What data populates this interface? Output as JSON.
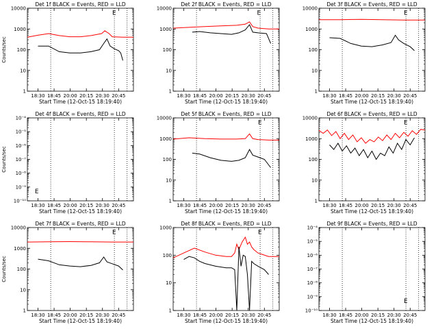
{
  "chart_data": [
    {
      "type": "line",
      "title": "Det 1f BLACK = Events, RED = LLD",
      "xlabel": "Start Time (12-Oct-15 18:19:40)",
      "ylabel": "Counts/sec",
      "yscale": "log",
      "ylim": [
        1,
        10000
      ],
      "yticks": [
        "1",
        "10",
        "100",
        "1000",
        "10000"
      ],
      "xticks": [
        "18:30",
        "18:45",
        "20:00",
        "20:15",
        "20:30",
        "20:45"
      ],
      "marker": "E",
      "empty": false,
      "series": [
        {
          "name": "LLD",
          "color": "#ff0000",
          "x": [
            0.0,
            0.1,
            0.2,
            0.3,
            0.4,
            0.5,
            0.6,
            0.7,
            0.73,
            0.77,
            0.8,
            0.9,
            1.0
          ],
          "y": [
            400,
            500,
            600,
            480,
            420,
            420,
            480,
            600,
            820,
            600,
            420,
            400,
            400
          ]
        },
        {
          "name": "Events",
          "color": "#000000",
          "x": [
            0.1,
            0.2,
            0.3,
            0.4,
            0.5,
            0.6,
            0.68,
            0.72,
            0.75,
            0.78,
            0.82,
            0.86,
            0.88,
            0.9
          ],
          "y": [
            150,
            150,
            80,
            70,
            70,
            80,
            100,
            200,
            330,
            150,
            110,
            90,
            70,
            30
          ]
        }
      ]
    },
    {
      "type": "line",
      "title": "Det 2f BLACK = Events, RED = LLD",
      "xlabel": "Start Time (12-Oct-15 18:19:40)",
      "ylabel": "",
      "yscale": "log",
      "ylim": [
        1,
        10000
      ],
      "yticks": [
        "1",
        "10",
        "100",
        "1000",
        "10000"
      ],
      "xticks": [
        "18:30",
        "18:45",
        "20:00",
        "20:15",
        "20:30",
        "20:45"
      ],
      "marker": "E",
      "empty": false,
      "series": [
        {
          "name": "LLD",
          "color": "#ff0000",
          "x": [
            0.0,
            0.15,
            0.3,
            0.45,
            0.6,
            0.68,
            0.72,
            0.75,
            0.8,
            0.9,
            1.0
          ],
          "y": [
            1100,
            1200,
            1300,
            1400,
            1500,
            1700,
            2200,
            1300,
            1100,
            1000,
            1000
          ]
        },
        {
          "name": "Events",
          "color": "#000000",
          "x": [
            0.18,
            0.25,
            0.35,
            0.45,
            0.55,
            0.62,
            0.68,
            0.72,
            0.75,
            0.8,
            0.88,
            0.92
          ],
          "y": [
            700,
            750,
            650,
            600,
            550,
            650,
            900,
            1600,
            700,
            650,
            600,
            200
          ]
        }
      ]
    },
    {
      "type": "line",
      "title": "Det 3f BLACK = Events, RED = LLD",
      "xlabel": "Start Time (12-Oct-15 18:19:40)",
      "ylabel": "",
      "yscale": "log",
      "ylim": [
        1,
        10000
      ],
      "yticks": [
        "1",
        "10",
        "100",
        "1000",
        "10000"
      ],
      "xticks": [
        "18:30",
        "18:45",
        "20:00",
        "20:15",
        "20:30",
        "20:45"
      ],
      "marker": "E",
      "empty": false,
      "series": [
        {
          "name": "LLD",
          "color": "#ff0000",
          "x": [
            0.0,
            0.2,
            0.4,
            0.6,
            0.8,
            1.0
          ],
          "y": [
            2800,
            2800,
            2900,
            2800,
            2700,
            2700
          ]
        },
        {
          "name": "Events",
          "color": "#000000",
          "x": [
            0.1,
            0.2,
            0.3,
            0.4,
            0.5,
            0.6,
            0.68,
            0.72,
            0.75,
            0.8,
            0.86,
            0.9
          ],
          "y": [
            380,
            350,
            200,
            150,
            140,
            170,
            220,
            500,
            300,
            200,
            140,
            90
          ]
        }
      ]
    },
    {
      "type": "line",
      "title": "Det 4f BLACK = Events, RED = LLD",
      "xlabel": "Start Time (12-Oct-15 18:19:40)",
      "ylabel": "Counts/sec",
      "yscale": "log",
      "ylim": [
        1e-10,
        0.0001
      ],
      "yticks": [
        "10⁻¹⁰",
        "10⁻⁹",
        "10⁻⁸",
        "10⁻⁷",
        "10⁻⁶",
        "10⁻⁵",
        "10⁻⁴"
      ],
      "xticks": [
        "18:30",
        "18:45",
        "20:00",
        "20:15",
        "20:30",
        "20:45"
      ],
      "marker": "E",
      "empty": true,
      "series": []
    },
    {
      "type": "line",
      "title": "Det 5f BLACK = Events, RED = LLD",
      "xlabel": "Start Time (12-Oct-15 18:19:40)",
      "ylabel": "",
      "yscale": "log",
      "ylim": [
        1,
        10000
      ],
      "yticks": [
        "1",
        "10",
        "100",
        "1000",
        "10000"
      ],
      "xticks": [
        "18:30",
        "18:45",
        "20:00",
        "20:15",
        "20:30",
        "20:45"
      ],
      "marker": "E",
      "empty": false,
      "series": [
        {
          "name": "LLD",
          "color": "#ff0000",
          "x": [
            0.0,
            0.15,
            0.3,
            0.45,
            0.6,
            0.68,
            0.72,
            0.75,
            0.8,
            0.9,
            1.0
          ],
          "y": [
            950,
            1100,
            1000,
            950,
            950,
            1000,
            1700,
            1000,
            900,
            850,
            850
          ]
        },
        {
          "name": "Events",
          "color": "#000000",
          "x": [
            0.18,
            0.25,
            0.35,
            0.45,
            0.55,
            0.62,
            0.68,
            0.72,
            0.75,
            0.8,
            0.86,
            0.92
          ],
          "y": [
            200,
            180,
            120,
            90,
            80,
            90,
            120,
            300,
            160,
            130,
            100,
            40
          ]
        }
      ]
    },
    {
      "type": "line",
      "title": "Det 6f BLACK = Events, RED = LLD",
      "xlabel": "Start Time (12-Oct-15 18:19:40)",
      "ylabel": "",
      "yscale": "log",
      "ylim": [
        1,
        10000
      ],
      "yticks": [
        "1",
        "10",
        "100",
        "1000",
        "10000"
      ],
      "xticks": [
        "18:30",
        "18:45",
        "20:00",
        "20:15",
        "20:30",
        "20:45"
      ],
      "marker": "E",
      "empty": false,
      "series": [
        {
          "name": "LLD",
          "color": "#ff0000",
          "x": [
            0.0,
            0.04,
            0.08,
            0.12,
            0.16,
            0.2,
            0.24,
            0.28,
            0.32,
            0.36,
            0.4,
            0.44,
            0.48,
            0.52,
            0.56,
            0.6,
            0.64,
            0.68,
            0.72,
            0.76,
            0.8,
            0.84,
            0.88,
            0.92,
            0.96,
            1.0
          ],
          "y": [
            2500,
            1800,
            2600,
            1400,
            2200,
            1000,
            1800,
            900,
            1500,
            700,
            1100,
            600,
            900,
            700,
            1200,
            800,
            1500,
            900,
            1800,
            1100,
            2000,
            1300,
            2400,
            1600,
            2800,
            2600
          ]
        },
        {
          "name": "Events",
          "color": "#000000",
          "x": [
            0.1,
            0.14,
            0.18,
            0.22,
            0.26,
            0.3,
            0.34,
            0.38,
            0.42,
            0.46,
            0.5,
            0.54,
            0.58,
            0.62,
            0.66,
            0.7,
            0.74,
            0.78,
            0.82,
            0.86,
            0.9
          ],
          "y": [
            500,
            300,
            600,
            250,
            450,
            200,
            350,
            150,
            300,
            120,
            250,
            100,
            200,
            150,
            400,
            200,
            600,
            300,
            900,
            500,
            1100
          ]
        }
      ]
    },
    {
      "type": "line",
      "title": "Det 7f BLACK = Events, RED = LLD",
      "xlabel": "Start Time (12-Oct-15 18:19:40)",
      "ylabel": "Counts/sec",
      "yscale": "log",
      "ylim": [
        1,
        10000
      ],
      "yticks": [
        "1",
        "10",
        "100",
        "1000",
        "10000"
      ],
      "xticks": [
        "18:30",
        "18:45",
        "20:00",
        "20:15",
        "20:30",
        "20:45"
      ],
      "marker": "E",
      "empty": false,
      "series": [
        {
          "name": "LLD",
          "color": "#ff0000",
          "x": [
            0.0,
            0.2,
            0.4,
            0.6,
            0.8,
            1.0
          ],
          "y": [
            2000,
            2050,
            2100,
            2050,
            2000,
            2000
          ]
        },
        {
          "name": "Events",
          "color": "#000000",
          "x": [
            0.1,
            0.2,
            0.3,
            0.4,
            0.5,
            0.6,
            0.68,
            0.72,
            0.75,
            0.8,
            0.86,
            0.9
          ],
          "y": [
            300,
            250,
            160,
            140,
            130,
            150,
            200,
            380,
            220,
            180,
            140,
            90
          ]
        }
      ]
    },
    {
      "type": "line",
      "title": "Det 8f BLACK = Events, RED = LLD",
      "xlabel": "Start Time (12-Oct-15 18:19:40)",
      "ylabel": "",
      "yscale": "log",
      "ylim": [
        1,
        1000
      ],
      "yticks": [
        "1",
        "10",
        "100",
        "1000"
      ],
      "xticks": [
        "18:30",
        "18:45",
        "20:00",
        "20:15",
        "20:30",
        "20:45"
      ],
      "marker": "E",
      "empty": false,
      "series": [
        {
          "name": "LLD",
          "color": "#ff0000",
          "x": [
            0.0,
            0.1,
            0.2,
            0.3,
            0.4,
            0.5,
            0.55,
            0.58,
            0.6,
            0.62,
            0.65,
            0.68,
            0.7,
            0.72,
            0.74,
            0.76,
            0.8,
            0.9,
            1.0
          ],
          "y": [
            80,
            120,
            180,
            130,
            100,
            90,
            90,
            120,
            250,
            160,
            300,
            450,
            250,
            300,
            200,
            160,
            120,
            90,
            90
          ]
        },
        {
          "name": "Events",
          "color": "#000000",
          "x": [
            0.1,
            0.15,
            0.2,
            0.25,
            0.3,
            0.4,
            0.5,
            0.55,
            0.58,
            0.6,
            0.62,
            0.64,
            0.66,
            0.68,
            0.7,
            0.72,
            0.74,
            0.76,
            0.8,
            0.86,
            0.9
          ],
          "y": [
            70,
            90,
            80,
            60,
            50,
            40,
            35,
            35,
            30,
            1,
            200,
            40,
            100,
            90,
            20,
            1,
            60,
            50,
            40,
            30,
            20
          ]
        }
      ]
    },
    {
      "type": "line",
      "title": "Det 9f BLACK = Events, RED = LLD",
      "xlabel": "Start Time (12-Oct-15 18:19:40)",
      "ylabel": "",
      "yscale": "log",
      "ylim": [
        1e-10,
        0.0001
      ],
      "yticks": [
        "10⁻¹⁰",
        "10⁻⁹",
        "10⁻⁸",
        "10⁻⁷",
        "10⁻⁶",
        "10⁻⁵",
        "10⁻⁴"
      ],
      "xticks": [
        "18:30",
        "18:45",
        "20:00",
        "20:15",
        "20:30",
        "20:45"
      ],
      "marker": "E",
      "empty": true,
      "series": []
    }
  ]
}
